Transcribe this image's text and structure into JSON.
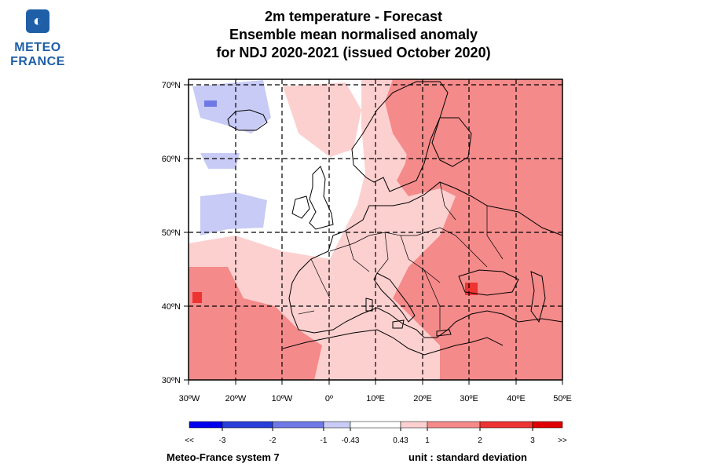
{
  "logo": {
    "line1": "METEO",
    "line2": "FRANCE",
    "mark_icon": "meteo-france-logo"
  },
  "title": {
    "line1": "2m temperature   -   Forecast",
    "line2": "Ensemble mean normalised anomaly",
    "line3": "for NDJ 2020-2021   (issued October 2020)"
  },
  "map": {
    "lat_labels": [
      "70ºN",
      "60ºN",
      "50ºN",
      "40ºN",
      "30ºN"
    ],
    "lon_labels": [
      "30ºW",
      "20ºW",
      "10ºW",
      "0º",
      "10ºE",
      "20ºE",
      "30ºE",
      "40ºE",
      "50ºE"
    ],
    "lat_range": [
      30,
      70
    ],
    "lon_range": [
      -30,
      50
    ]
  },
  "colorbar": {
    "tick_labels": [
      "<<",
      "-3",
      "-2",
      "-1",
      "-0.43",
      "0.43",
      "1",
      "2",
      "3",
      ">>"
    ],
    "colors": [
      "#0000ee",
      "#2a3fd8",
      "#6f79e6",
      "#c8cbf5",
      "#ffffff",
      "#fdd0d0",
      "#f58a8a",
      "#ee3333",
      "#e00000"
    ]
  },
  "footer": {
    "left": "Meteo-France system 7",
    "right": "unit : standard deviation"
  }
}
